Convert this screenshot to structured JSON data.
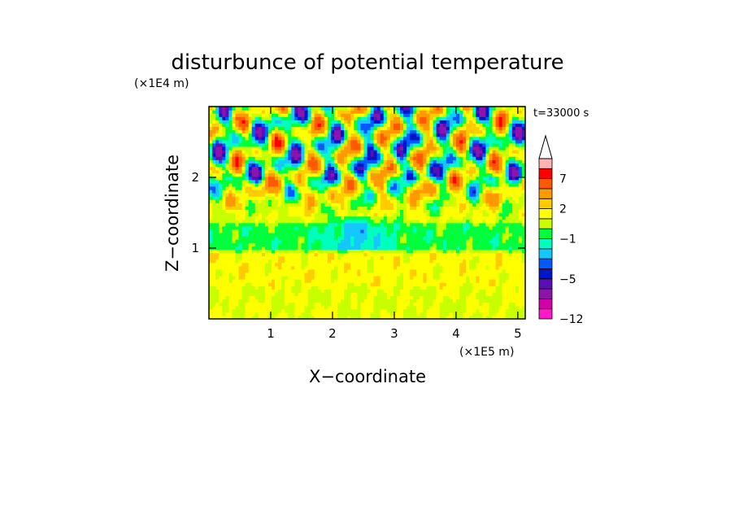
{
  "chart_data": {
    "type": "heatmap",
    "title": "disturbunce of potential temperature",
    "xlabel": "X−coordinate",
    "ylabel": "Z−coordinate",
    "x_unit": "(×1E5 m)",
    "y_unit": "(×1E4 m)",
    "time_stamp": "t=33000 s",
    "xlim": [
      0,
      5.12
    ],
    "ylim": [
      0,
      3.0
    ],
    "x_ticks": [
      {
        "v": 1,
        "label": "1"
      },
      {
        "v": 2,
        "label": "2"
      },
      {
        "v": 3,
        "label": "3"
      },
      {
        "v": 4,
        "label": "4"
      },
      {
        "v": 5,
        "label": "5"
      }
    ],
    "y_ticks": [
      {
        "v": 1,
        "label": "1"
      },
      {
        "v": 2,
        "label": "2"
      }
    ],
    "colorbar": {
      "levels": [
        -12,
        -10,
        -8,
        -6,
        -5,
        -4,
        -3,
        -2,
        -1,
        0,
        1,
        2,
        3,
        5,
        7,
        9,
        11
      ],
      "colors": [
        "#ff19c8",
        "#d200aa",
        "#8c14aa",
        "#5a0fb4",
        "#0014c8",
        "#005aff",
        "#14c8ff",
        "#00ffbe",
        "#00ff3c",
        "#c8ff00",
        "#ffff00",
        "#ffcc00",
        "#ff9900",
        "#ff5a00",
        "#ff0000",
        "#ffb4b4",
        "#ffffff"
      ],
      "labels": [
        {
          "v": -12,
          "label": "−12"
        },
        {
          "v": -5,
          "label": "−5"
        },
        {
          "v": -1,
          "label": "−1"
        },
        {
          "v": 2,
          "label": "2"
        },
        {
          "v": 7,
          "label": "7"
        }
      ],
      "extend": "max"
    },
    "field_summary": [
      {
        "z_range": [
          0.0,
          0.5
        ],
        "level": 1
      },
      {
        "z_range": [
          0.5,
          1.0
        ],
        "level": 1.5
      },
      {
        "z_range": [
          1.0,
          1.4
        ],
        "level": -0.5
      },
      {
        "z_range": [
          1.4,
          2.0
        ],
        "level": 1
      },
      {
        "z_range": [
          2.0,
          3.0
        ],
        "level": 0
      }
    ]
  }
}
